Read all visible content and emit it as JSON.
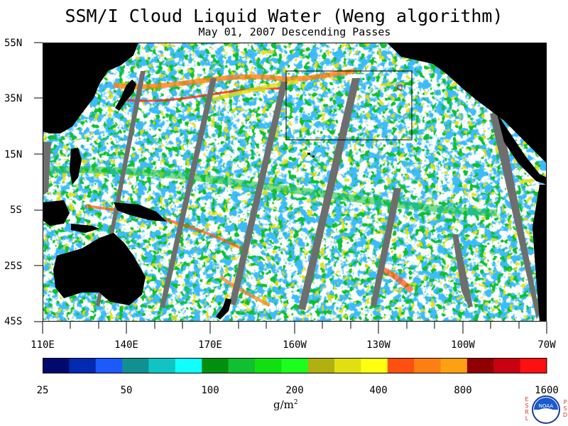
{
  "title": "SSM/I Cloud Liquid Water (Weng algorithm)",
  "subtitle": "May 01, 2007  Descending Passes",
  "lat_labels": [
    "55N",
    "35N",
    "15N",
    "5S",
    "25S",
    "45S"
  ],
  "lon_labels": [
    "110E",
    "140E",
    "170E",
    "160W",
    "130W",
    "100W",
    "70W"
  ],
  "colorbar": {
    "colors": [
      "#000a6e",
      "#002ab0",
      "#1c5aff",
      "#109090",
      "#10c4c4",
      "#10ffff",
      "#009010",
      "#10c030",
      "#10e010",
      "#1cff1c",
      "#b0b010",
      "#e0e010",
      "#ffff10",
      "#ff5010",
      "#ff8010",
      "#ffa010",
      "#900000",
      "#c80010",
      "#ff1010"
    ],
    "labels": [
      "25",
      "50",
      "100",
      "200",
      "400",
      "800",
      "1600"
    ]
  },
  "unit": "g/m",
  "unit_sup": "2",
  "logo": {
    "left_text": "ESRL",
    "right_text": "PSD",
    "center_text": "NOAA"
  },
  "colors": {
    "land": "#000000",
    "no_data": "#6e6e6e",
    "background": "#ffffff"
  }
}
